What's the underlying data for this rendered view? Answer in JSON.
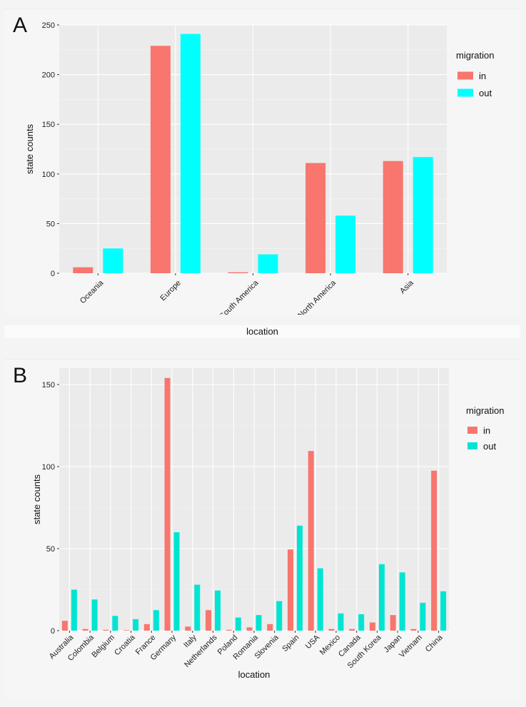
{
  "chart_data": [
    {
      "panel_label": "A",
      "type": "bar",
      "categories": [
        "Oceania",
        "Europe",
        "South America",
        "North America",
        "Asia"
      ],
      "series": [
        {
          "name": "in",
          "color": "#f8766d",
          "values": [
            6,
            229,
            1,
            111,
            113
          ]
        },
        {
          "name": "out",
          "color": "#00ffff",
          "values": [
            25,
            241,
            19,
            58,
            117
          ]
        }
      ],
      "xlabel": "location",
      "ylabel": "state counts",
      "ylim": [
        0,
        250
      ],
      "yticks": [
        0,
        50,
        100,
        150,
        200,
        250
      ],
      "legend_title": "migration",
      "legend_position": "right",
      "grid": true
    },
    {
      "panel_label": "B",
      "type": "bar",
      "categories": [
        "Australia",
        "Colombia",
        "Belgium",
        "Croatia",
        "France",
        "Germany",
        "Italy",
        "Netherlands",
        "Poland",
        "Romania",
        "Slovenia",
        "Spain",
        "USA",
        "Mexico",
        "Canada",
        "South Korea",
        "Japan",
        "Vietnam",
        "China"
      ],
      "series": [
        {
          "name": "in",
          "color": "#f8766d",
          "values": [
            6,
            1,
            0.5,
            0.3,
            4,
            154,
            2.5,
            12.5,
            0.5,
            2,
            4,
            49.5,
            109.5,
            1,
            1,
            5,
            9.5,
            1,
            97.5
          ]
        },
        {
          "name": "out",
          "color": "#00e5d2",
          "values": [
            25,
            19,
            9,
            7,
            12.5,
            60,
            28,
            24.5,
            8,
            9.5,
            18,
            64,
            38,
            10.5,
            10,
            40.5,
            35.5,
            17,
            24
          ]
        }
      ],
      "xlabel": "location",
      "ylabel": "state counts",
      "ylim": [
        0,
        160
      ],
      "yticks": [
        0,
        50,
        100,
        150
      ],
      "legend_title": "migration",
      "legend_position": "right",
      "grid": true
    }
  ]
}
